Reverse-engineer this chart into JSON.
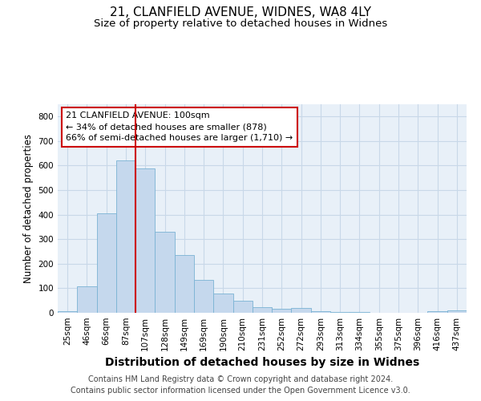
{
  "title_line1": "21, CLANFIELD AVENUE, WIDNES, WA8 4LY",
  "title_line2": "Size of property relative to detached houses in Widnes",
  "xlabel": "Distribution of detached houses by size in Widnes",
  "ylabel": "Number of detached properties",
  "categories": [
    "25sqm",
    "46sqm",
    "66sqm",
    "87sqm",
    "107sqm",
    "128sqm",
    "149sqm",
    "169sqm",
    "190sqm",
    "210sqm",
    "231sqm",
    "252sqm",
    "272sqm",
    "293sqm",
    "313sqm",
    "334sqm",
    "355sqm",
    "375sqm",
    "396sqm",
    "416sqm",
    "437sqm"
  ],
  "values": [
    7,
    107,
    405,
    620,
    590,
    330,
    237,
    135,
    78,
    50,
    22,
    15,
    18,
    8,
    4,
    2,
    0,
    0,
    0,
    8,
    10
  ],
  "bar_color": "#c5d8ed",
  "bar_edge_color": "#7ab3d4",
  "annotation_text": "21 CLANFIELD AVENUE: 100sqm\n← 34% of detached houses are smaller (878)\n66% of semi-detached houses are larger (1,710) →",
  "annotation_box_color": "#ffffff",
  "annotation_box_edge_color": "#cc0000",
  "red_line_color": "#cc0000",
  "footnote_line1": "Contains HM Land Registry data © Crown copyright and database right 2024.",
  "footnote_line2": "Contains public sector information licensed under the Open Government Licence v3.0.",
  "ylim": [
    0,
    850
  ],
  "yticks": [
    0,
    100,
    200,
    300,
    400,
    500,
    600,
    700,
    800
  ],
  "grid_color": "#c8d8e8",
  "background_color": "#ffffff",
  "plot_bg_color": "#e8f0f8",
  "title_fontsize": 11,
  "subtitle_fontsize": 9.5,
  "ylabel_fontsize": 8.5,
  "xlabel_fontsize": 10,
  "tick_fontsize": 7.5,
  "footnote_fontsize": 7,
  "ann_fontsize": 8
}
